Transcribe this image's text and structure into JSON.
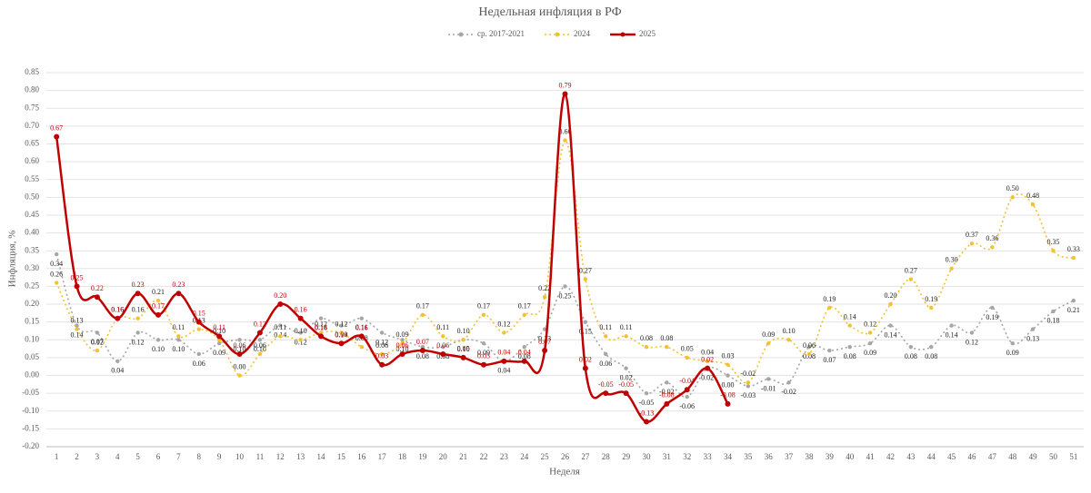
{
  "chart_data": {
    "type": "line",
    "title": "Недельная инфляция в РФ",
    "xlabel": "Неделя",
    "ylabel": "Инфляция, %",
    "legend": "top",
    "grid": true,
    "categories": [
      1,
      2,
      3,
      4,
      5,
      6,
      7,
      8,
      9,
      10,
      11,
      12,
      13,
      14,
      15,
      16,
      17,
      18,
      19,
      20,
      21,
      22,
      23,
      24,
      25,
      26,
      27,
      28,
      29,
      30,
      31,
      32,
      33,
      34,
      35,
      36,
      37,
      38,
      39,
      40,
      41,
      42,
      43,
      44,
      45,
      46,
      47,
      48,
      49,
      50,
      51
    ],
    "ylim": [
      -0.2,
      0.85
    ],
    "yticks": [
      {
        "value": -0.2,
        "label": "-0.20"
      },
      {
        "value": -0.15,
        "label": "-0.15"
      },
      {
        "value": -0.1,
        "label": "-0.10"
      },
      {
        "value": -0.05,
        "label": "-0.05"
      },
      {
        "value": 0,
        "label": "0.00"
      },
      {
        "value": 0.05,
        "label": "0.05"
      },
      {
        "value": 0.1,
        "label": "0.10"
      },
      {
        "value": 0.15,
        "label": "0.15"
      },
      {
        "value": 0.2,
        "label": "0.20"
      },
      {
        "value": 0.25,
        "label": "0.25"
      },
      {
        "value": 0.3,
        "label": "0.30"
      },
      {
        "value": 0.35,
        "label": "0.35"
      },
      {
        "value": 0.4,
        "label": "0.40"
      },
      {
        "value": 0.45,
        "label": "0.45"
      },
      {
        "value": 0.5,
        "label": "0.50"
      },
      {
        "value": 0.55,
        "label": "0.55"
      },
      {
        "value": 0.6,
        "label": "0.60"
      },
      {
        "value": 0.65,
        "label": "0.65"
      },
      {
        "value": 0.7,
        "label": "0.70"
      },
      {
        "value": 0.75,
        "label": "0.75"
      },
      {
        "value": 0.8,
        "label": "0.80"
      },
      {
        "value": 0.85,
        "label": "0.85"
      }
    ],
    "series": [
      {
        "name": "ср. 2017-2021",
        "color": "#a6a6a6",
        "style": "dotted",
        "values": [
          0.34,
          0.14,
          0.12,
          0.04,
          0.12,
          0.1,
          0.1,
          0.06,
          0.09,
          0.1,
          0.1,
          0.14,
          0.12,
          0.16,
          0.14,
          0.16,
          0.12,
          0.1,
          0.08,
          0.08,
          0.1,
          0.09,
          0.04,
          0.08,
          0.13,
          0.25,
          0.15,
          0.06,
          0.02,
          -0.05,
          -0.02,
          -0.06,
          0.02,
          0.0,
          -0.03,
          -0.01,
          -0.02,
          0.08,
          0.07,
          0.08,
          0.09,
          0.14,
          0.08,
          0.08,
          0.14,
          0.12,
          0.19,
          0.09,
          0.13,
          0.18,
          0.21
        ],
        "value_labels": [
          "0.34",
          "0.14",
          "0.12",
          "0.04",
          "0.12",
          "0.10",
          "0.10",
          "0.06",
          "0.09",
          "0.10",
          "0.10",
          "0.14",
          "0.12",
          "0.16",
          "0.14",
          "0.16",
          "0.12",
          "0.10",
          "0.08",
          "0.08",
          "0.10",
          "0.09",
          "0.04",
          "0.08",
          "0.13",
          "0.25",
          "0.15",
          "0.06",
          "0.02",
          "-0.05",
          "-0.02",
          "-0.06",
          "0.02",
          "0.00",
          "-0.03",
          "-0.01",
          "-0.02",
          "0.08",
          "0.07",
          "0.08",
          "0.09",
          "0.14",
          "0.08",
          "0.08",
          "0.14",
          "0.12",
          "0.19",
          "0.09",
          "0.13",
          "0.18",
          "0.21"
        ]
      },
      {
        "name": "2024",
        "color": "#f2c230",
        "style": "dotted",
        "values": [
          0.26,
          0.13,
          0.07,
          0.16,
          0.16,
          0.21,
          0.11,
          0.13,
          0.1,
          0.0,
          0.06,
          0.11,
          0.1,
          0.12,
          0.12,
          0.08,
          0.06,
          0.09,
          0.17,
          0.11,
          0.1,
          0.17,
          0.12,
          0.17,
          0.22,
          0.66,
          0.27,
          0.11,
          0.11,
          0.08,
          0.08,
          0.05,
          0.04,
          0.03,
          -0.02,
          0.09,
          0.1,
          0.06,
          0.19,
          0.14,
          0.12,
          0.2,
          0.27,
          0.19,
          0.3,
          0.37,
          0.36,
          0.5,
          0.48,
          0.35,
          0.33
        ],
        "value_labels": [
          "0.26",
          "0.13",
          "0.07",
          "0.16",
          "0.16",
          "0.21",
          "0.11",
          "0.13",
          "0.10",
          "0.00",
          "0.06",
          "0.11",
          "0.10",
          "0.12",
          "0.12",
          "0.08",
          "0.06",
          "0.09",
          "0.17",
          "0.11",
          "0.10",
          "0.17",
          "0.12",
          "0.17",
          "0.22",
          "0.66",
          "0.27",
          "0.11",
          "0.11",
          "0.08",
          "0.08",
          "0.05",
          "0.04",
          "0.03",
          "-0.02",
          "0.09",
          "0.10",
          "0.06",
          "0.19",
          "0.14",
          "0.12",
          "0.20",
          "0.27",
          "0.19",
          "0.30",
          "0.37",
          "0.36",
          "0.50",
          "0.48",
          "0.35",
          "0.33"
        ]
      },
      {
        "name": "2025",
        "color": "#c00000",
        "style": "solid",
        "values": [
          0.67,
          0.25,
          0.22,
          0.16,
          0.23,
          0.17,
          0.23,
          0.15,
          0.11,
          0.06,
          0.12,
          0.2,
          0.16,
          0.11,
          0.09,
          0.11,
          0.03,
          0.06,
          0.07,
          0.06,
          0.05,
          0.03,
          0.04,
          0.04,
          0.07,
          0.79,
          0.02,
          -0.05,
          -0.05,
          -0.13,
          -0.08,
          -0.04,
          0.02,
          -0.08,
          null,
          null,
          null,
          null,
          null,
          null,
          null,
          null,
          null,
          null,
          null,
          null,
          null,
          null,
          null,
          null,
          null
        ],
        "value_labels": [
          "0.67",
          "0.25",
          "0.22",
          "0.16",
          "0.23",
          "0.17",
          "0.23",
          "0.15",
          "0.11",
          "0.06",
          "0.12",
          "0.20",
          "0.16",
          "0.11",
          "0.09",
          "0.11",
          "0.03",
          "0.06",
          "0.07",
          "0.06",
          "0.05",
          "0.03",
          "0.04",
          "0.04",
          "0.07",
          "0.79",
          "0.02",
          "-0.05",
          "-0.05",
          "-0.13",
          "-0.08",
          "-0.04",
          "0.02",
          "-0.08",
          null,
          null,
          null,
          null,
          null,
          null,
          null,
          null,
          null,
          null,
          null,
          null,
          null,
          null,
          null,
          null,
          null
        ]
      }
    ]
  }
}
